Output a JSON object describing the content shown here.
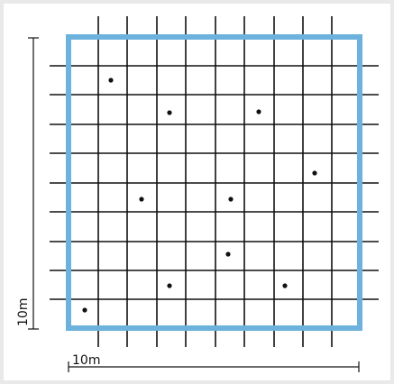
{
  "scale_labels": {
    "vertical": "10m",
    "horizontal": "10m"
  }
}
